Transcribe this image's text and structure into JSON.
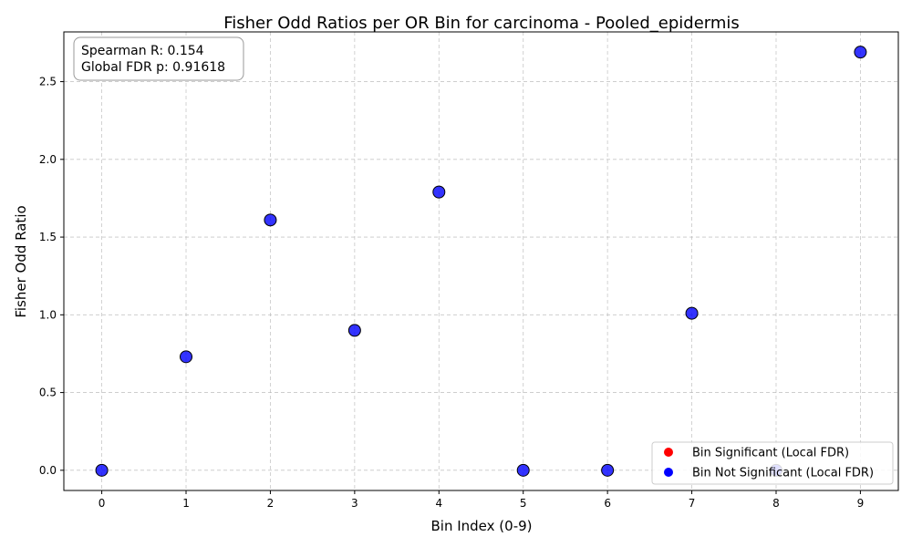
{
  "chart_data": {
    "type": "scatter",
    "title": "Fisher Odd Ratios per OR Bin for carcinoma - Pooled_epidermis",
    "xlabel": "Bin Index (0-9)",
    "ylabel": "Fisher Odd Ratio",
    "xlim": [
      -0.45,
      9.45
    ],
    "ylim": [
      -0.13,
      2.82
    ],
    "x_ticks": [
      0,
      1,
      2,
      3,
      4,
      5,
      6,
      7,
      8,
      9
    ],
    "y_ticks": [
      0.0,
      0.5,
      1.0,
      1.5,
      2.0,
      2.5
    ],
    "y_tick_labels": [
      "0.0",
      "0.5",
      "1.0",
      "1.5",
      "2.0",
      "2.5"
    ],
    "grid": true,
    "legend_position": "lower-right",
    "series": [
      {
        "name": "Bin Not Significant (Local FDR)",
        "color": "#0000ff",
        "x": [
          0,
          1,
          2,
          3,
          4,
          5,
          6,
          7,
          8,
          9
        ],
        "y": [
          0.0,
          0.73,
          1.61,
          0.9,
          1.79,
          0.0,
          0.0,
          1.01,
          0.0,
          2.69
        ]
      },
      {
        "name": "Bin Significant (Local FDR)",
        "color": "#ff0000",
        "x": [],
        "y": []
      }
    ],
    "legend": [
      {
        "label": "Bin Significant (Local FDR)",
        "color": "#ff0000"
      },
      {
        "label": "Bin Not Significant (Local FDR)",
        "color": "#0000ff"
      }
    ],
    "annotation": {
      "line1": "Spearman R: 0.154",
      "line2": "Global FDR p: 0.91618"
    }
  }
}
